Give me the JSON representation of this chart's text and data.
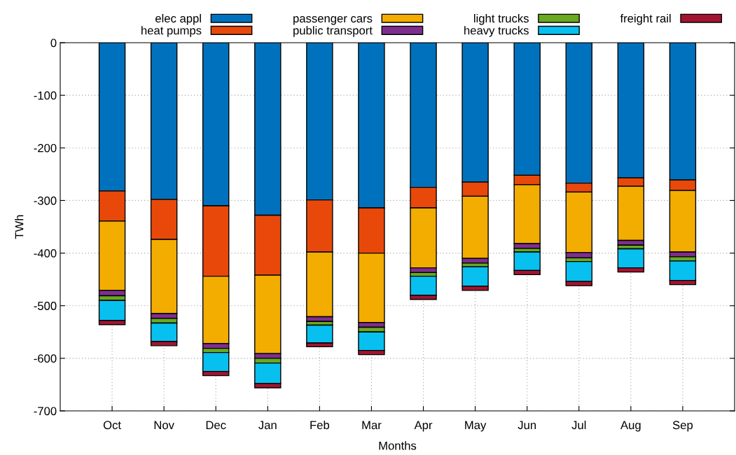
{
  "chart_data": {
    "type": "bar",
    "stacked": true,
    "xlabel": "Months",
    "ylabel": "TWh",
    "categories": [
      "Oct",
      "Nov",
      "Dec",
      "Jan",
      "Feb",
      "Mar",
      "Apr",
      "May",
      "Jun",
      "Jul",
      "Aug",
      "Sep"
    ],
    "series": [
      {
        "name": "elec appl",
        "color": "#0072bd",
        "values": [
          -282,
          -298,
          -310,
          -328,
          -299,
          -314,
          -275,
          -265,
          -252,
          -267,
          -257,
          -261
        ]
      },
      {
        "name": "heat pumps",
        "color": "#e8490a",
        "values": [
          -57,
          -76,
          -134,
          -114,
          -99,
          -86,
          -39,
          -27,
          -18,
          -17,
          -16,
          -20
        ]
      },
      {
        "name": "passenger cars",
        "color": "#f2ad00",
        "values": [
          -132,
          -141,
          -128,
          -149,
          -123,
          -132,
          -114,
          -118,
          -112,
          -115,
          -103,
          -117
        ]
      },
      {
        "name": "public transport",
        "color": "#7e2f8e",
        "values": [
          -10,
          -9,
          -9,
          -9,
          -9,
          -9,
          -9,
          -9,
          -9,
          -10,
          -9,
          -9
        ]
      },
      {
        "name": "light trucks",
        "color": "#6aa822",
        "values": [
          -9,
          -9,
          -8,
          -9,
          -7,
          -9,
          -7,
          -7,
          -7,
          -7,
          -7,
          -8
        ]
      },
      {
        "name": "heavy trucks",
        "color": "#08c0ef",
        "values": [
          -38,
          -35,
          -36,
          -39,
          -34,
          -35,
          -36,
          -37,
          -35,
          -38,
          -36,
          -37
        ]
      },
      {
        "name": "freight rail",
        "color": "#a2142f",
        "values": [
          -8,
          -8,
          -8,
          -8,
          -7,
          -8,
          -8,
          -8,
          -8,
          -8,
          -8,
          -8
        ]
      }
    ],
    "ylim": [
      -700,
      0
    ],
    "yticks": [
      -700,
      -600,
      -500,
      -400,
      -300,
      -200,
      -100,
      0
    ],
    "grid": true,
    "legend": "top"
  }
}
